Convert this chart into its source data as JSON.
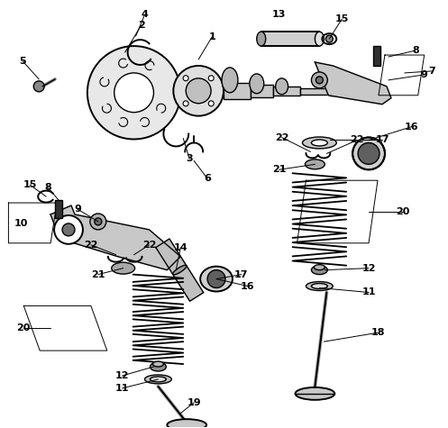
{
  "bg_color": "#ffffff",
  "line_color": "#000000",
  "fig_width": 4.97,
  "fig_height": 4.75,
  "dpi": 100
}
